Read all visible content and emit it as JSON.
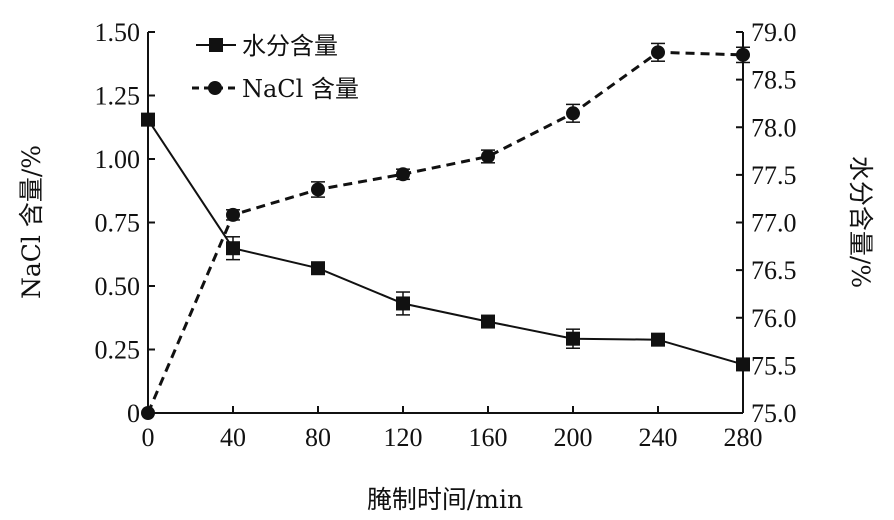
{
  "chart_data": {
    "type": "line",
    "xlabel": "腌制时间/min",
    "ylabel_left": "NaCl 含量/%",
    "ylabel_right": "水分含量/%",
    "x_ticks": [
      "0",
      "40",
      "80",
      "120",
      "160",
      "200",
      "240",
      "280"
    ],
    "y_left_ticks": [
      "0",
      "0.25",
      "0.50",
      "0.75",
      "1.00",
      "1.25",
      "1.50"
    ],
    "y_right_ticks": [
      "75.0",
      "75.5",
      "76.0",
      "76.5",
      "77.0",
      "77.5",
      "78.0",
      "78.5",
      "79.0"
    ],
    "xlim": [
      0,
      280
    ],
    "ylim_left": [
      0,
      1.5
    ],
    "ylim_right": [
      75.0,
      79.0
    ],
    "legend_position": "top-left",
    "grid": false,
    "series": [
      {
        "name": "水分含量",
        "axis": "right",
        "marker": "square",
        "line_style": "solid",
        "x": [
          0,
          40,
          80,
          120,
          160,
          200,
          240,
          280
        ],
        "y": [
          78.08,
          76.73,
          76.52,
          76.15,
          75.96,
          75.78,
          75.77,
          75.51
        ],
        "error": [
          0,
          0.12,
          0.05,
          0.12,
          0.06,
          0.1,
          0.06,
          0.05
        ]
      },
      {
        "name": "NaCl 含量",
        "axis": "left",
        "marker": "circle",
        "line_style": "dashed",
        "x": [
          0,
          40,
          80,
          120,
          160,
          200,
          240,
          280
        ],
        "y": [
          0,
          0.78,
          0.88,
          0.94,
          1.01,
          1.18,
          1.42,
          1.41
        ],
        "error": [
          0,
          0.02,
          0.03,
          0.02,
          0.025,
          0.035,
          0.035,
          0.03
        ]
      }
    ]
  }
}
